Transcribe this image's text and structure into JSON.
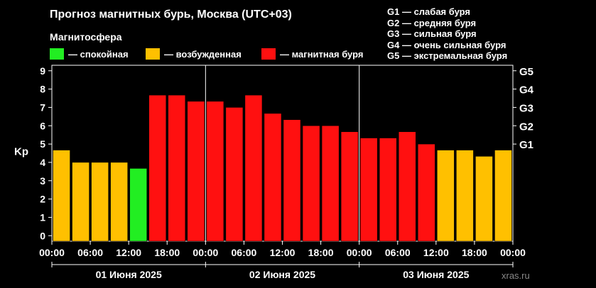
{
  "header": {
    "title": "Прогноз магнитных бурь, Москва (UTC+03)",
    "subtitle": "Магнитосфера"
  },
  "legend": [
    {
      "label": "— спокойная",
      "color": "#22ee22"
    },
    {
      "label": "— возбужденная",
      "color": "#ffc000"
    },
    {
      "label": "— магнитная буря",
      "color": "#ff1010"
    }
  ],
  "storm_levels": [
    "G1 — слабая буря",
    "G2 — средняя буря",
    "G3 — сильная буря",
    "G4 — очень сильная буря",
    "G5 — экстремальная буря"
  ],
  "credit": "xras.ru",
  "chart_data": {
    "type": "bar",
    "ylabel": "Kp",
    "ylim": [
      -0.3,
      9.3
    ],
    "yticks": [
      0,
      1,
      2,
      3,
      4,
      5,
      6,
      7,
      8,
      9
    ],
    "right_ticks": [
      {
        "kp": 5,
        "label": "G1"
      },
      {
        "kp": 6,
        "label": "G2"
      },
      {
        "kp": 7,
        "label": "G3"
      },
      {
        "kp": 8,
        "label": "G4"
      },
      {
        "kp": 9,
        "label": "G5"
      }
    ],
    "xtick_labels": [
      "00:00",
      "06:00",
      "12:00",
      "18:00",
      "00:00",
      "06:00",
      "12:00",
      "18:00",
      "00:00",
      "06:00",
      "12:00",
      "18:00",
      "00:00"
    ],
    "day_labels": [
      "01 Июня 2025",
      "02 Июня 2025",
      "03 Июня 2025"
    ],
    "colors": {
      "quiet": "#22ee22",
      "active": "#ffc000",
      "storm": "#ff1010"
    },
    "values": [
      4.67,
      4.0,
      4.0,
      4.0,
      3.67,
      7.67,
      7.67,
      7.33,
      7.33,
      7.0,
      7.67,
      6.67,
      6.33,
      6.0,
      6.0,
      5.67,
      5.33,
      5.33,
      5.67,
      5.0,
      4.67,
      4.67,
      4.33,
      4.67
    ]
  }
}
